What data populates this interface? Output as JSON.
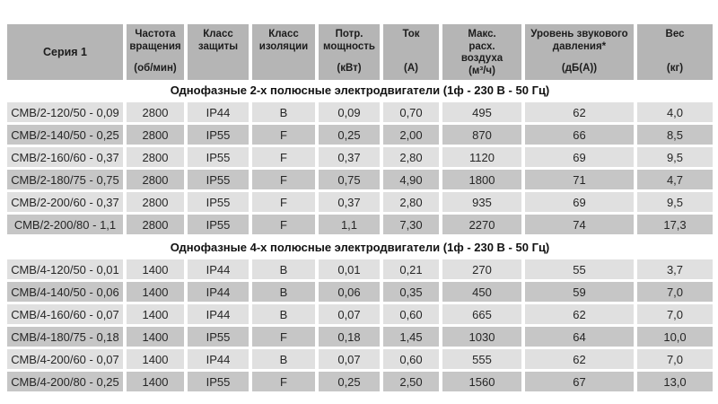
{
  "colors": {
    "background": "#ffffff",
    "header_bg": "#b5b5b5",
    "row_light_bg": "#e0e0e0",
    "row_dark_bg": "#c6c6c6",
    "text": "#262626"
  },
  "table": {
    "columns": [
      {
        "title": "Серия 1",
        "unit": ""
      },
      {
        "title": "Частота\nвращения",
        "unit": "(об/мин)"
      },
      {
        "title": "Класс\nзащиты",
        "unit": ""
      },
      {
        "title": "Класс\nизоляции",
        "unit": ""
      },
      {
        "title": "Потр.\nмощность",
        "unit": "(кВт)"
      },
      {
        "title": "Ток",
        "unit": "(А)"
      },
      {
        "title": "Макс.\nрасх.\nвоздуха",
        "unit": "(м³/ч)"
      },
      {
        "title": "Уровень звукового\nдавления*",
        "unit": "(дБ(А))"
      },
      {
        "title": "Вес",
        "unit": "(кг)"
      }
    ],
    "sections": [
      {
        "title": "Однофазные 2-х полюсные электродвигатели (1ф - 230 В - 50 Гц)",
        "rows": [
          [
            "СМВ/2-120/50 - 0,09",
            "2800",
            "IP44",
            "B",
            "0,09",
            "0,70",
            "495",
            "62",
            "4,0"
          ],
          [
            "СМВ/2-140/50 - 0,25",
            "2800",
            "IP55",
            "F",
            "0,25",
            "2,00",
            "870",
            "66",
            "8,5"
          ],
          [
            "СМВ/2-160/60 - 0,37",
            "2800",
            "IP55",
            "F",
            "0,37",
            "2,80",
            "1120",
            "69",
            "9,5"
          ],
          [
            "СМВ/2-180/75 - 0,75",
            "2800",
            "IP55",
            "F",
            "0,75",
            "4,90",
            "1800",
            "71",
            "4,7"
          ],
          [
            "СМВ/2-200/60 - 0,37",
            "2800",
            "IP55",
            "F",
            "0,37",
            "2,80",
            "935",
            "69",
            "9,5"
          ],
          [
            "СМВ/2-200/80 - 1,1",
            "2800",
            "IP55",
            "F",
            "1,1",
            "7,30",
            "2270",
            "74",
            "17,3"
          ]
        ]
      },
      {
        "title": "Однофазные 4-х полюсные электродвигатели (1ф - 230 В - 50 Гц)",
        "rows": [
          [
            "СМВ/4-120/50 - 0,01",
            "1400",
            "IP44",
            "B",
            "0,01",
            "0,21",
            "270",
            "55",
            "3,7"
          ],
          [
            "СМВ/4-140/50 - 0,06",
            "1400",
            "IP44",
            "B",
            "0,06",
            "0,35",
            "450",
            "59",
            "7,0"
          ],
          [
            "СМВ/4-160/60 - 0,07",
            "1400",
            "IP44",
            "B",
            "0,07",
            "0,60",
            "665",
            "62",
            "7,0"
          ],
          [
            "СМВ/4-180/75 - 0,18",
            "1400",
            "IP55",
            "F",
            "0,18",
            "1,45",
            "1030",
            "64",
            "10,0"
          ],
          [
            "СМВ/4-200/60 - 0,07",
            "1400",
            "IP44",
            "B",
            "0,07",
            "0,60",
            "555",
            "62",
            "7,0"
          ],
          [
            "СМВ/4-200/80 - 0,25",
            "1400",
            "IP55",
            "F",
            "0,25",
            "2,50",
            "1560",
            "67",
            "13,0"
          ]
        ]
      }
    ]
  }
}
